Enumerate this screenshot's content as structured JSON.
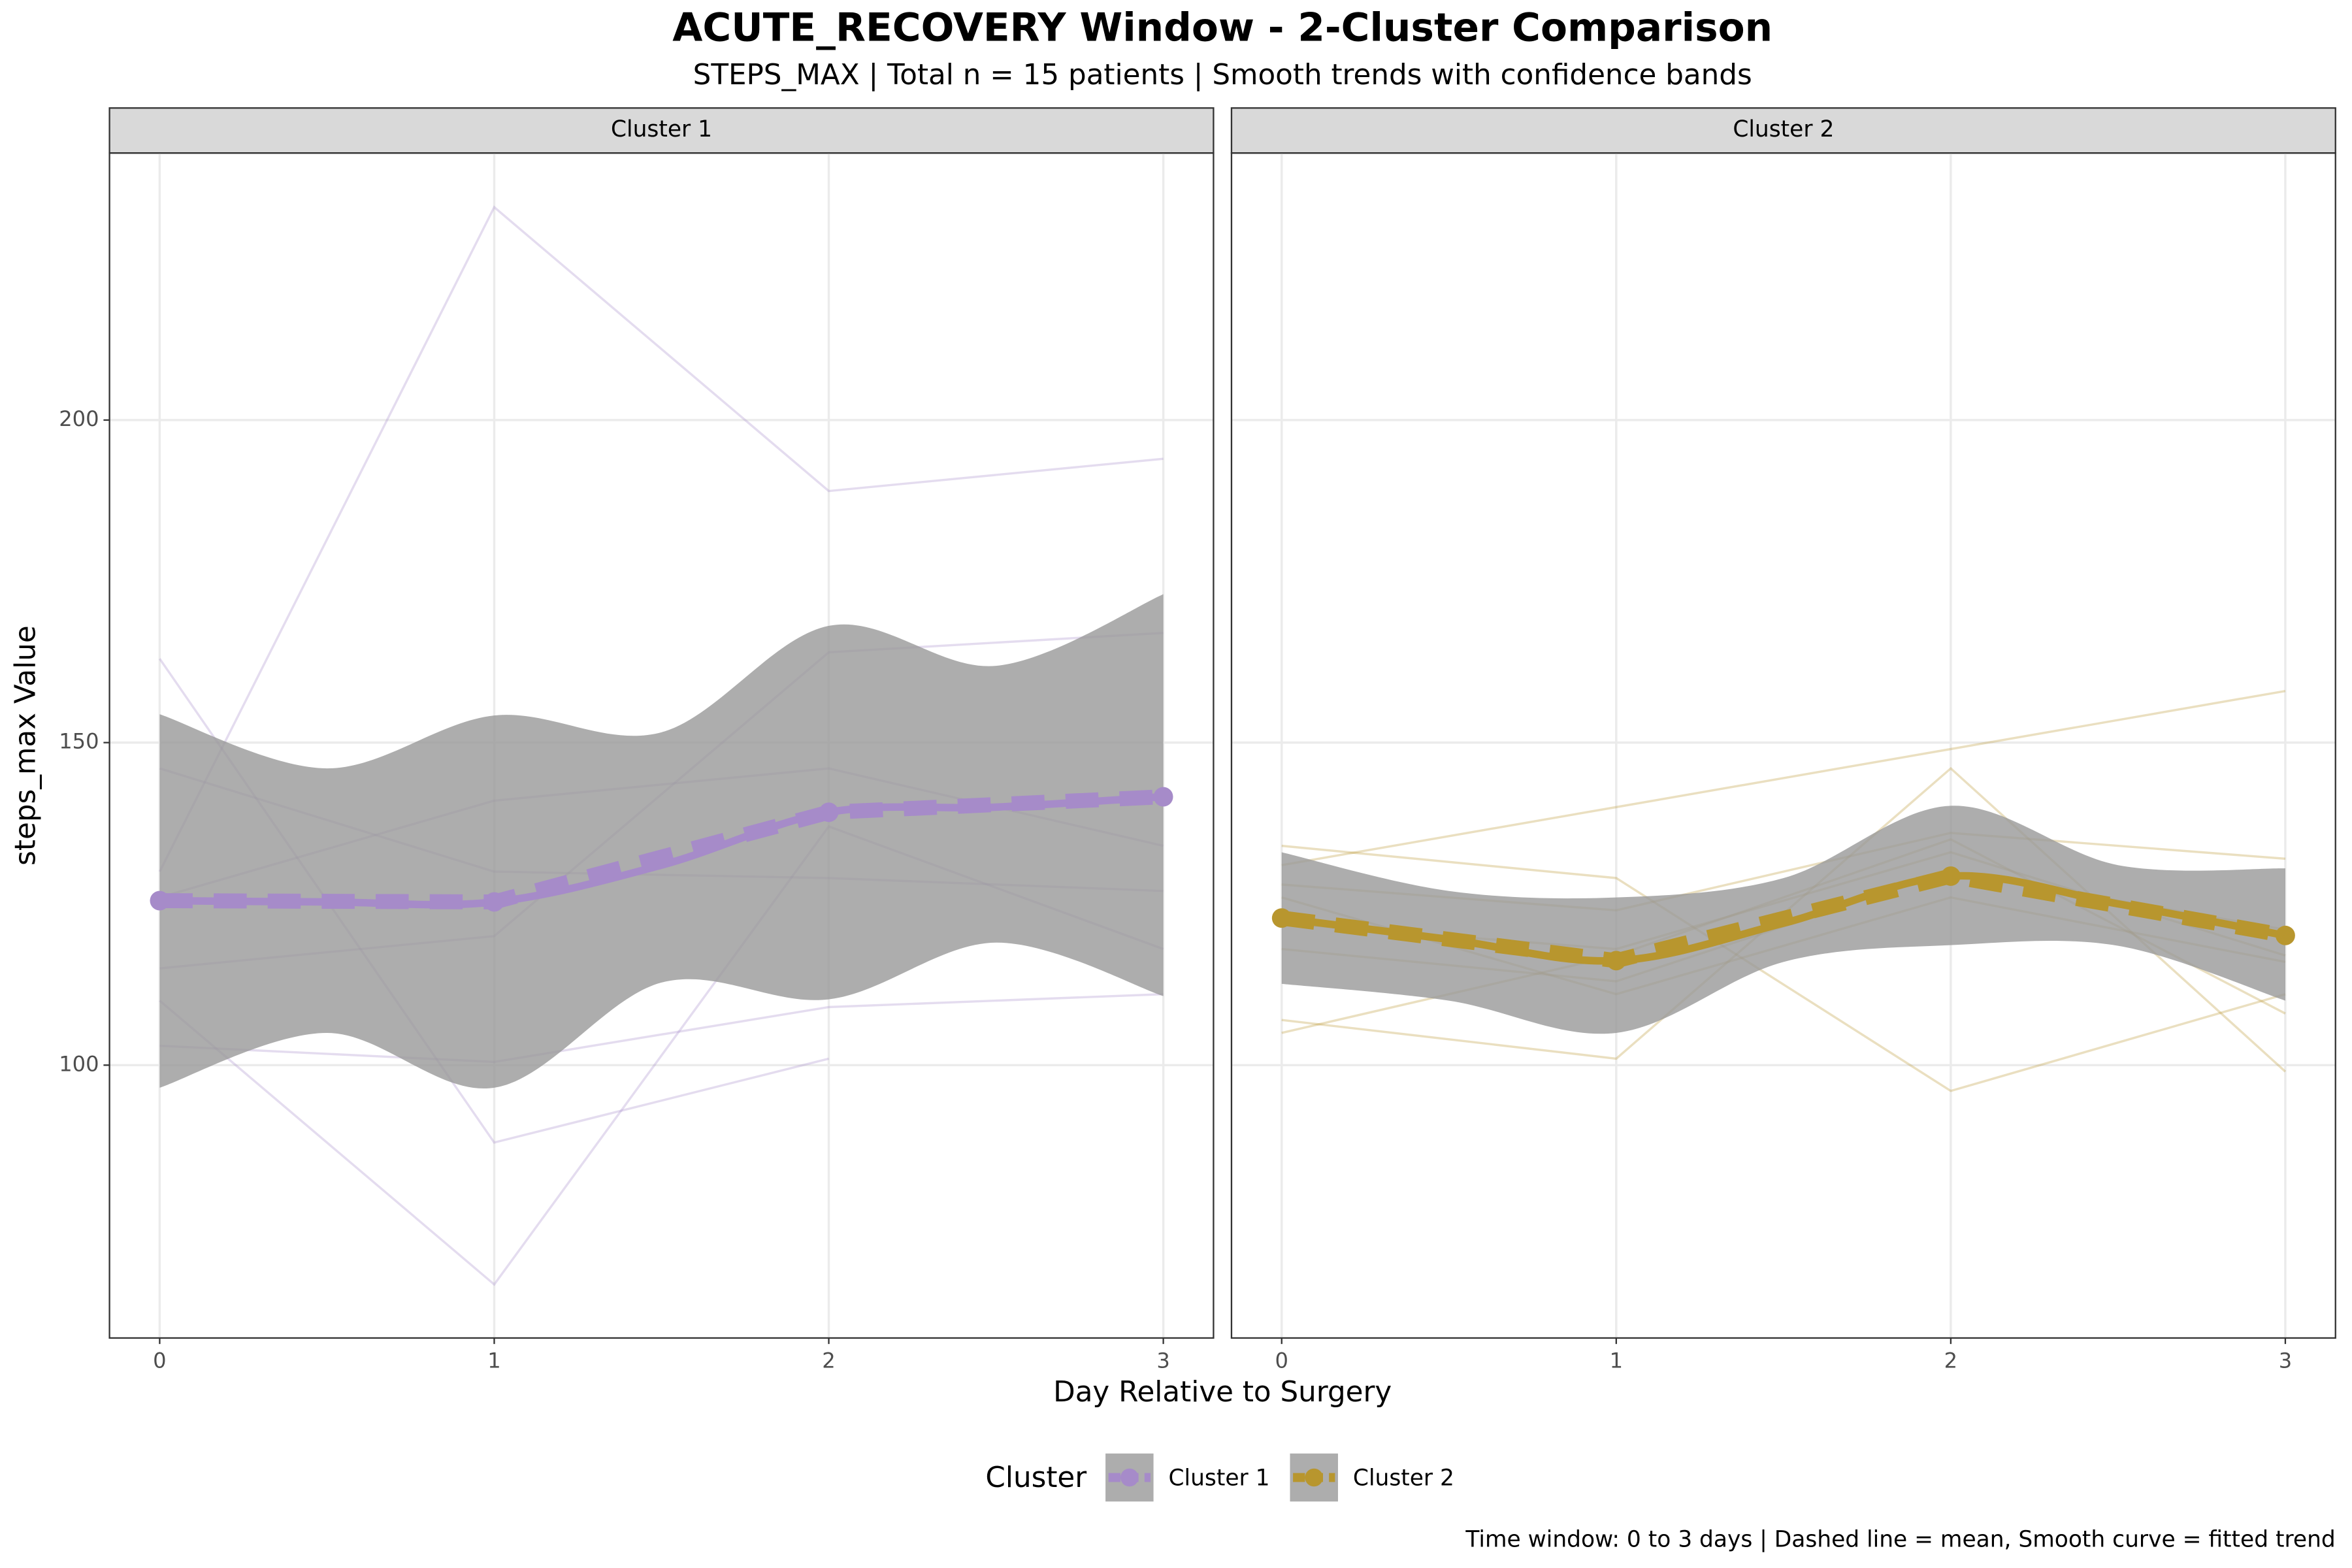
{
  "chart_data": {
    "type": "line",
    "title": "ACUTE_RECOVERY Window - 2-Cluster Comparison",
    "subtitle": "STEPS_MAX | Total n = 15 patients | Smooth trends with confidence bands",
    "x_label": "Day Relative to Surgery",
    "y_label": "steps_max Value",
    "legend_title": "Cluster",
    "caption": "Time window: 0 to 3 days | Dashed line = mean, Smooth curve = fitted trend",
    "xlim": [
      -0.15,
      3.15
    ],
    "ylim": [
      57.7,
      241.4
    ],
    "xticks": [
      0,
      1,
      2,
      3
    ],
    "yticks": [
      100,
      150,
      200
    ],
    "grid": true,
    "band_color": "#999999",
    "x": [
      0,
      1,
      2,
      3
    ],
    "smooth_x": [
      0,
      0.5,
      1,
      1.5,
      2,
      2.5,
      3
    ],
    "facets": [
      {
        "name": "Cluster 1",
        "color": "#a68bc9",
        "patients": [
          [
            163,
            88,
            101,
            null
          ],
          [
            103,
            100.5,
            109,
            111
          ],
          [
            130,
            233,
            189,
            194
          ],
          [
            110,
            66,
            137,
            118
          ],
          [
            146,
            130,
            129,
            127
          ],
          [
            115,
            120,
            164,
            167
          ],
          [
            126,
            141,
            146,
            134
          ]
        ],
        "mean": [
          125.5,
          125.3,
          139.2,
          141.6
        ],
        "trend": [
          125.5,
          125.3,
          125.3,
          131,
          139.2,
          140,
          141.6
        ],
        "band_lower": [
          96.5,
          105,
          96.5,
          112.8,
          110.2,
          119,
          110.7
        ],
        "band_upper": [
          154.4,
          146,
          154.2,
          151.6,
          168.1,
          161.9,
          173
        ]
      },
      {
        "name": "Cluster 2",
        "color": "#b8962e",
        "patients": [
          [
            131,
            140,
            149,
            158
          ],
          [
            134,
            129,
            96,
            111
          ],
          [
            107,
            101,
            146,
            99
          ],
          [
            105,
            117,
            135,
            108
          ],
          [
            128,
            124,
            136,
            132
          ],
          [
            126,
            111,
            126,
            116
          ],
          [
            122,
            118,
            133,
            117
          ],
          [
            118,
            113,
            130,
            121
          ]
        ],
        "mean": [
          122.8,
          116.2,
          129.3,
          120.1
        ],
        "trend": [
          122.8,
          119.5,
          116.2,
          122,
          129.3,
          125,
          120.1
        ],
        "band_lower": [
          112.6,
          110,
          105,
          116,
          118.6,
          118.5,
          110
        ],
        "band_upper": [
          133,
          127,
          126,
          129,
          140.2,
          131,
          130.5
        ]
      }
    ]
  }
}
